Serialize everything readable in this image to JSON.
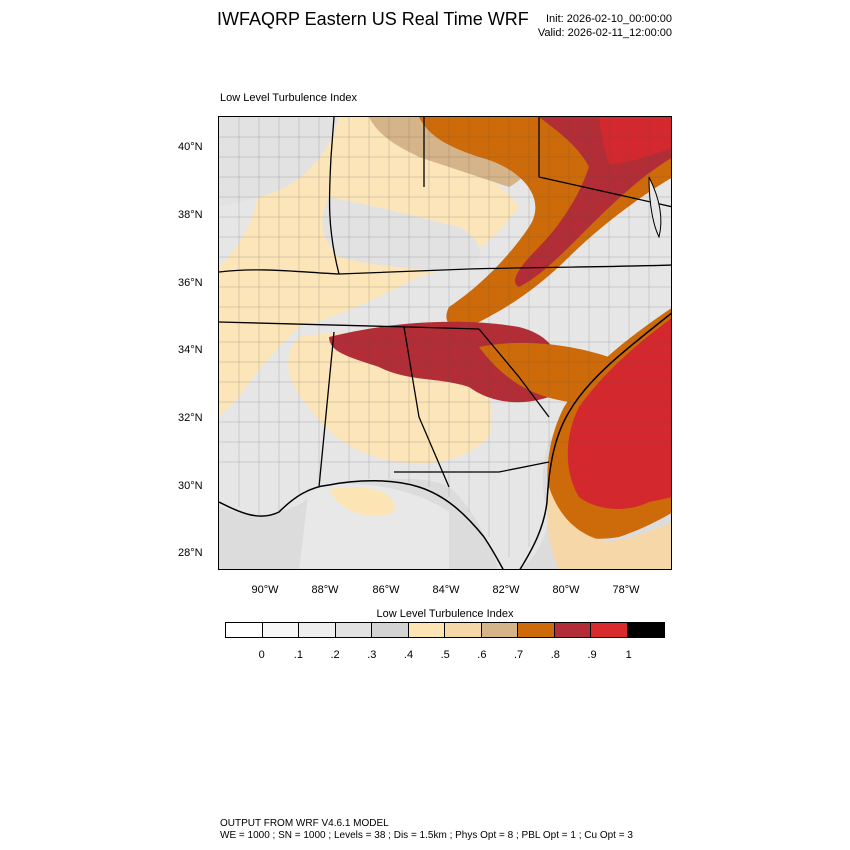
{
  "header": {
    "title": "IWFAQRP Eastern US Real Time WRF",
    "init": "Init: 2026-02-10_00:00:00",
    "valid": "Valid: 2026-02-11_12:00:00"
  },
  "map": {
    "title": "Low Level Turbulence Index",
    "lat_labels": [
      "40°N",
      "38°N",
      "36°N",
      "34°N",
      "32°N",
      "30°N",
      "28°N"
    ],
    "lon_labels": [
      "90°W",
      "88°W",
      "86°W",
      "84°W",
      "82°W",
      "80°W",
      "78°W"
    ],
    "lon_range": [
      -91.5,
      -76.6
    ],
    "lat_range": [
      27.5,
      40.9
    ],
    "ocean_color": "#dcdcdc",
    "colors": {
      "low": "#e6e6e6",
      "mid": "#fde4b4",
      "high": "#cd6a0a",
      "very_high": "#b22d35",
      "max": "#d3282d"
    }
  },
  "colorbar": {
    "title": "Low Level Turbulence Index",
    "colors": [
      "#ffffff",
      "#f7f7f7",
      "#eeeeee",
      "#e2e2e2",
      "#d3d3d3",
      "#fde4b4",
      "#f6d8a8",
      "#d6b48a",
      "#cd6a0a",
      "#b22d35",
      "#d92a2e",
      "#000000"
    ],
    "labels": [
      "0",
      ".1",
      ".2",
      ".3",
      ".4",
      ".5",
      ".6",
      ".7",
      ".8",
      ".9",
      "1"
    ]
  },
  "footer": {
    "line1": "OUTPUT FROM WRF V4.6.1 MODEL",
    "line2": "WE = 1000 ; SN = 1000 ; Levels = 38 ; Dis = 1.5km ; Phys Opt = 8 ; PBL Opt = 1 ; Cu Opt = 3"
  }
}
